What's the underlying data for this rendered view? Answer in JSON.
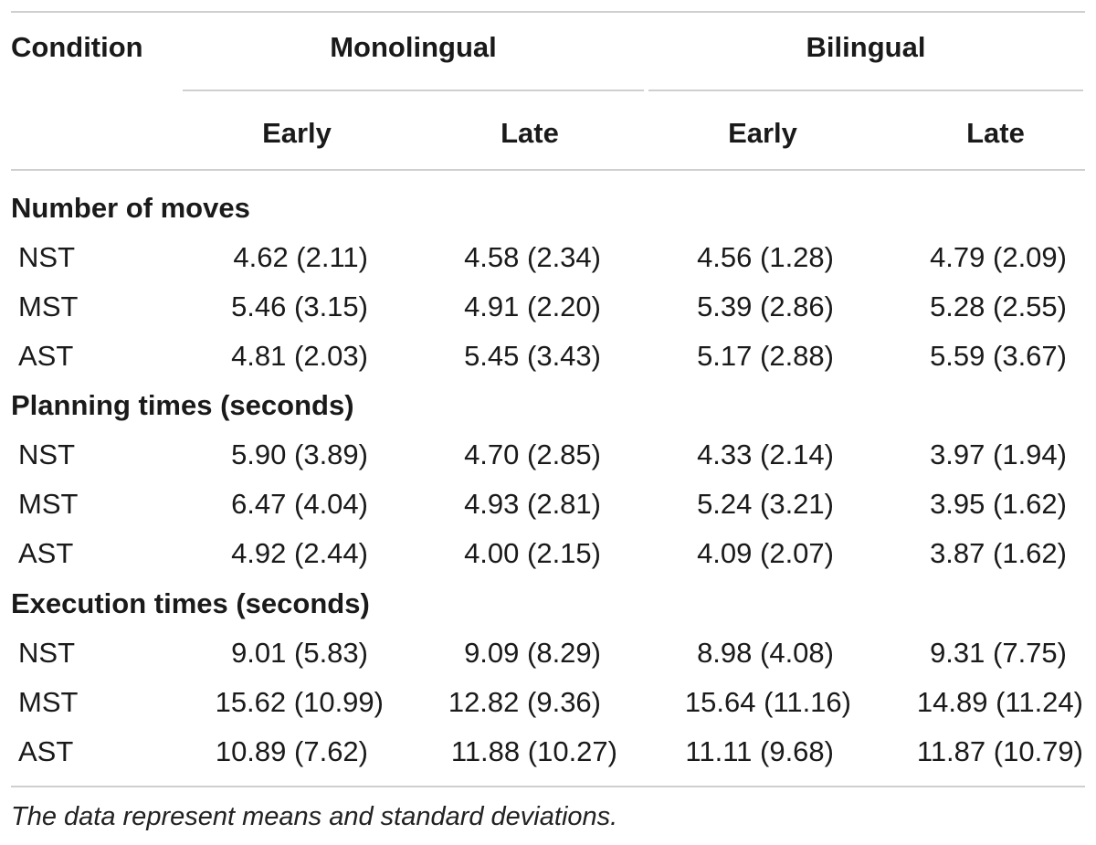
{
  "table": {
    "headers": {
      "condition": "Condition",
      "group1": "Monolingual",
      "group2": "Bilingual",
      "sub": [
        "Early",
        "Late",
        "Early",
        "Late"
      ]
    },
    "sections": [
      {
        "title": "Number of moves",
        "rows": [
          {
            "label": "NST",
            "values": [
              "4.62 (2.11)",
              "4.58 (2.34)",
              "4.56 (1.28)",
              "4.79 (2.09)"
            ]
          },
          {
            "label": "MST",
            "values": [
              "5.46 (3.15)",
              "4.91 (2.20)",
              "5.39 (2.86)",
              "5.28 (2.55)"
            ]
          },
          {
            "label": "AST",
            "values": [
              "4.81 (2.03)",
              "5.45 (3.43)",
              "5.17 (2.88)",
              "5.59 (3.67)"
            ]
          }
        ]
      },
      {
        "title": "Planning times (seconds)",
        "rows": [
          {
            "label": "NST",
            "values": [
              "5.90 (3.89)",
              "4.70 (2.85)",
              "4.33 (2.14)",
              "3.97 (1.94)"
            ]
          },
          {
            "label": "MST",
            "values": [
              "6.47 (4.04)",
              "4.93 (2.81)",
              "5.24 (3.21)",
              "3.95 (1.62)"
            ]
          },
          {
            "label": "AST",
            "values": [
              "4.92 (2.44)",
              "4.00 (2.15)",
              "4.09 (2.07)",
              "3.87 (1.62)"
            ]
          }
        ]
      },
      {
        "title": "Execution times (seconds)",
        "rows": [
          {
            "label": "NST",
            "values": [
              "9.01 (5.83)",
              "9.09 (8.29)",
              "8.98 (4.08)",
              "9.31 (7.75)"
            ]
          },
          {
            "label": "MST",
            "values": [
              "15.62 (10.99)",
              "12.82 (9.36)",
              "15.64 (11.16)",
              "14.89 (11.24)"
            ]
          },
          {
            "label": "AST",
            "values": [
              "10.89 (7.62)",
              "11.88 (10.27)",
              "11.11 (9.68)",
              "11.87 (10.79)"
            ]
          }
        ]
      }
    ],
    "footnote": "The data represent means and standard deviations."
  }
}
